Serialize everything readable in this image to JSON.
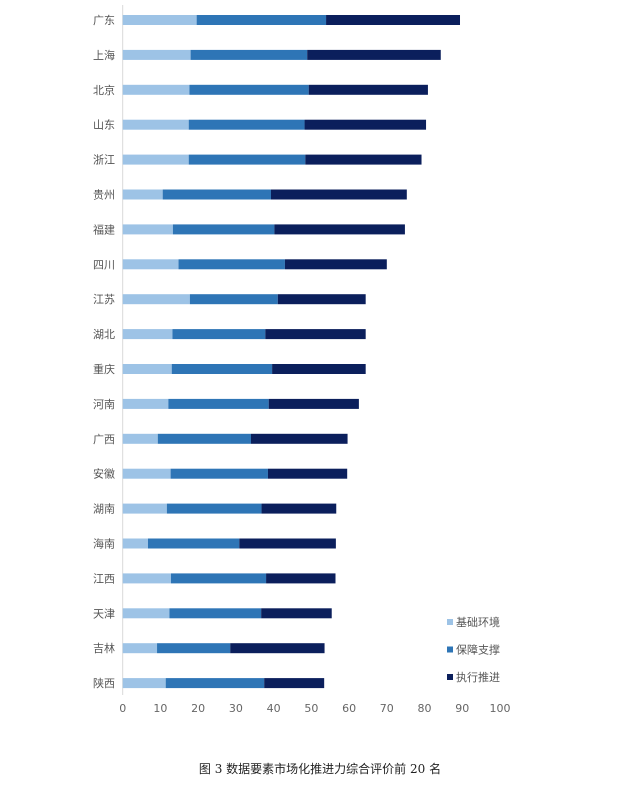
{
  "chart_data": {
    "type": "bar",
    "orientation": "horizontal",
    "stacked": true,
    "title": "图 3  数据要素市场化推进力综合评价前 20 名",
    "xlabel": "",
    "ylabel": "",
    "xlim": [
      0,
      100
    ],
    "xticks": [
      0,
      10,
      20,
      30,
      40,
      50,
      60,
      70,
      80,
      90,
      100
    ],
    "grid": false,
    "legend_position": "bottom-right",
    "categories": [
      "广东",
      "上海",
      "北京",
      "山东",
      "浙江",
      "贵州",
      "福建",
      "四川",
      "江苏",
      "湖北",
      "重庆",
      "河南",
      "广西",
      "安徽",
      "湖南",
      "海南",
      "江西",
      "天津",
      "吉林",
      "陕西"
    ],
    "series": [
      {
        "name": "基础环境",
        "color": "#9dc3e6",
        "values": [
          19.6,
          18.0,
          17.7,
          17.5,
          17.5,
          10.6,
          13.3,
          14.8,
          17.8,
          13.2,
          13.0,
          12.1,
          9.3,
          12.7,
          11.7,
          6.7,
          12.8,
          12.4,
          9.1,
          11.4
        ]
      },
      {
        "name": "保障支撑",
        "color": "#2e75b6",
        "values": [
          34.3,
          30.9,
          31.6,
          30.7,
          30.9,
          28.7,
          26.9,
          28.2,
          23.3,
          24.6,
          26.6,
          26.6,
          24.7,
          25.8,
          25.1,
          24.2,
          25.2,
          24.3,
          19.4,
          26.1
        ]
      },
      {
        "name": "执行推进",
        "color": "#0b1f5c",
        "values": [
          35.5,
          35.4,
          31.6,
          32.2,
          30.8,
          36.0,
          34.6,
          27.0,
          23.3,
          26.6,
          24.8,
          23.9,
          25.6,
          21.0,
          19.8,
          25.6,
          18.4,
          18.7,
          25.0,
          15.9
        ]
      }
    ]
  }
}
